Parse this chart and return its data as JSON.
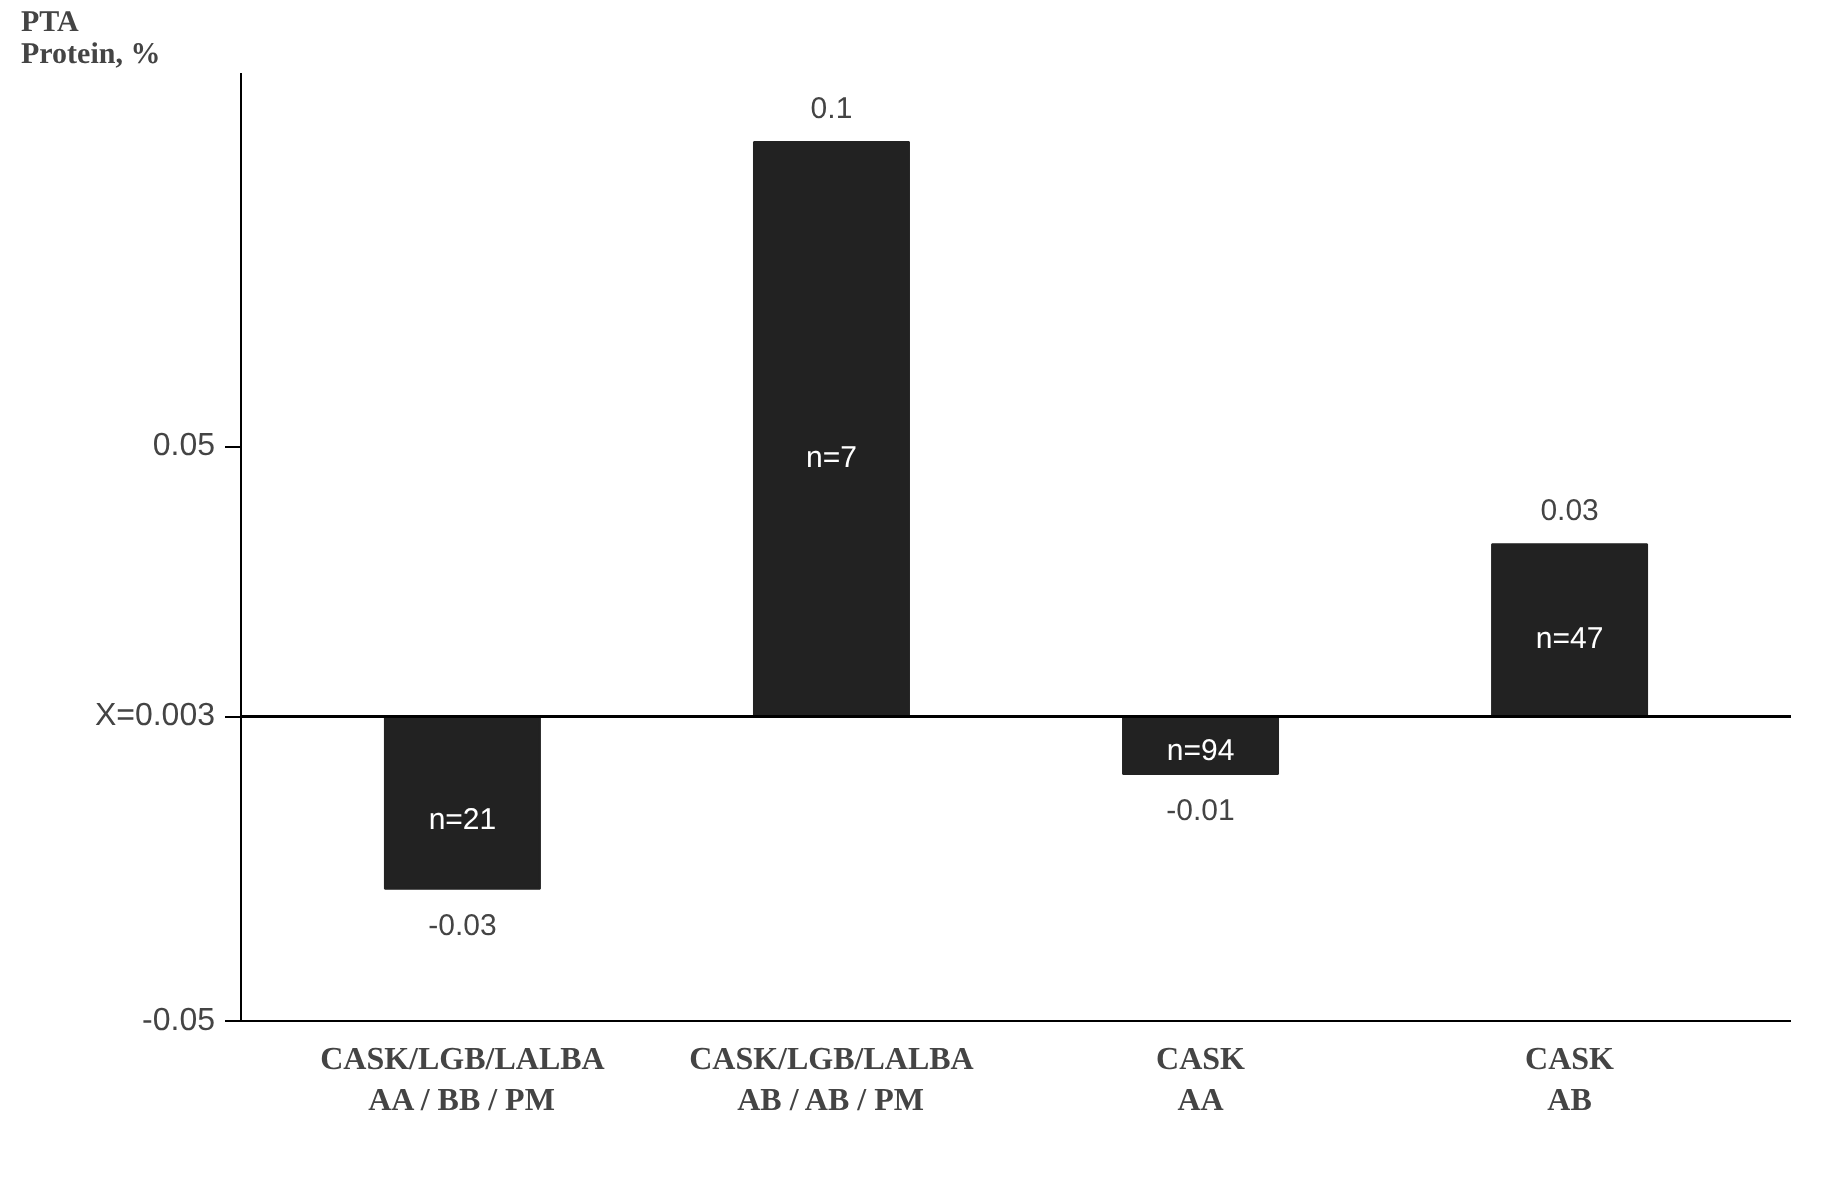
{
  "chart_data": {
    "type": "bar",
    "ylabel": "PTA\nProtein, %",
    "categories": [
      "CASK/LGB/LALBA\nAA / BB / PM",
      "CASK/LGB/LALBA\nAB / AB / PM",
      "CASK\nAA",
      "CASK\nAB"
    ],
    "values": [
      -0.03,
      0.1,
      -0.01,
      0.03
    ],
    "base": [
      0.003,
      0.003,
      0.003,
      0.003
    ],
    "color": "#222222",
    "data_labels": true,
    "ylim": [
      -0.05,
      0.115
    ],
    "yticks": [
      -0.05,
      {
        "value": 0.003,
        "label": "X=0.003"
      },
      0.05
    ],
    "ref_lines": [
      {
        "axis": "y",
        "value": 0.003,
        "label": null,
        "color": "#000000"
      }
    ],
    "annotations": [
      "n=21",
      "n=7",
      "n=94",
      "n=47"
    ],
    "grid": false
  }
}
